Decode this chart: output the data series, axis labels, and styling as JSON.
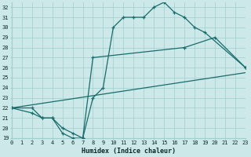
{
  "xlabel": "Humidex (Indice chaleur)",
  "xlim": [
    0,
    23
  ],
  "ylim": [
    19,
    32.5
  ],
  "yticks": [
    19,
    20,
    21,
    22,
    23,
    24,
    25,
    26,
    27,
    28,
    29,
    30,
    31,
    32
  ],
  "xticks": [
    0,
    1,
    2,
    3,
    4,
    5,
    6,
    7,
    8,
    9,
    10,
    11,
    12,
    13,
    14,
    15,
    16,
    17,
    18,
    19,
    20,
    21,
    22,
    23
  ],
  "bg_color": "#cce8e8",
  "grid_color": "#9fcece",
  "line_color": "#1a6b6b",
  "line1_x": [
    0,
    2,
    3,
    4,
    5,
    6,
    7,
    8,
    9,
    10,
    11,
    12,
    13,
    14,
    15,
    16,
    17,
    18,
    19,
    23
  ],
  "line1_y": [
    22,
    22,
    21,
    21,
    19.5,
    19,
    19,
    23,
    24,
    30,
    31,
    31,
    31,
    32,
    32.5,
    31.5,
    31,
    30,
    29.5,
    26
  ],
  "line2_x": [
    0,
    2,
    3,
    4,
    5,
    6,
    7,
    8,
    17,
    20,
    23
  ],
  "line2_y": [
    22,
    21.5,
    21,
    21,
    20,
    19.5,
    19,
    27,
    28,
    29,
    26
  ],
  "line3_x": [
    0,
    23
  ],
  "line3_y": [
    22,
    25.5
  ],
  "xlabel_fontsize": 6,
  "tick_fontsize": 5
}
